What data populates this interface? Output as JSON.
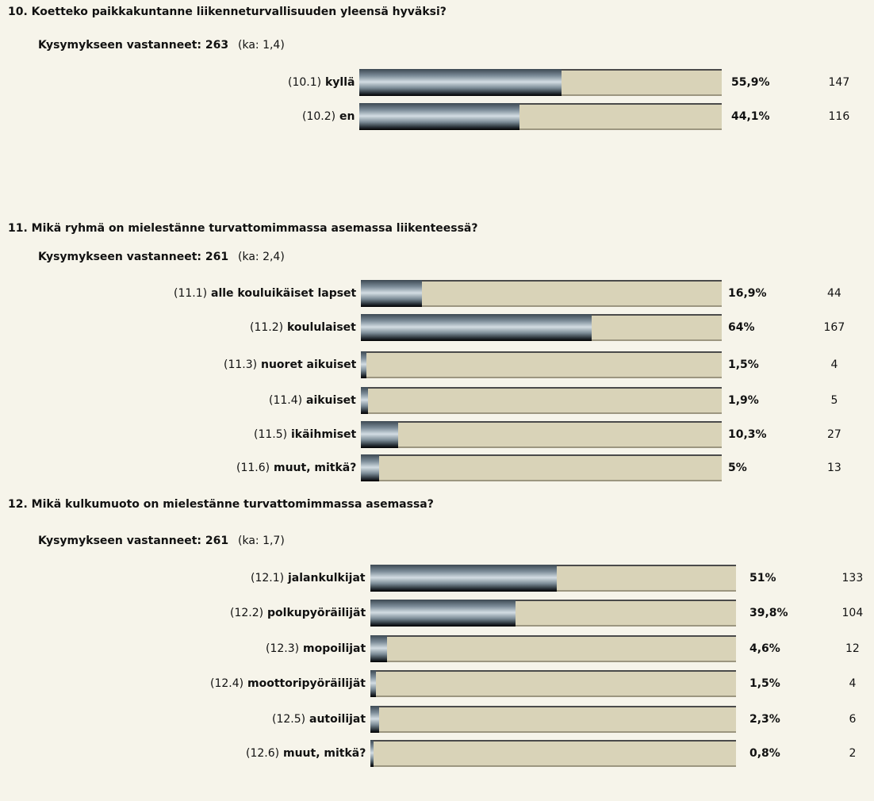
{
  "questions": [
    {
      "title": "10. Koetteko paikkakuntanne liikenneturvallisuuden yleensä hyväksi?",
      "respondents": "Kysymykseen vastanneet: 263",
      "mean": "(ka: 1,4)",
      "items": [
        {
          "code": "(10.1)",
          "label": "kyllä",
          "percent": 55.9,
          "percent_label": "55,9%",
          "count": 147
        },
        {
          "code": "(10.2)",
          "label": "en",
          "percent": 44.1,
          "percent_label": "44,1%",
          "count": 116
        }
      ]
    },
    {
      "title": "11. Mikä ryhmä on mielestänne turvattomimmassa asemassa liikenteessä?",
      "respondents": "Kysymykseen vastanneet: 261",
      "mean": "(ka: 2,4)",
      "items": [
        {
          "code": "(11.1)",
          "label": "alle kouluikäiset lapset",
          "percent": 16.9,
          "percent_label": "16,9%",
          "count": 44
        },
        {
          "code": "(11.2)",
          "label": "koululaiset",
          "percent": 64,
          "percent_label": "64%",
          "count": 167
        },
        {
          "code": "(11.3)",
          "label": "nuoret aikuiset",
          "percent": 1.5,
          "percent_label": "1,5%",
          "count": 4
        },
        {
          "code": "(11.4)",
          "label": "aikuiset",
          "percent": 1.9,
          "percent_label": "1,9%",
          "count": 5
        },
        {
          "code": "(11.5)",
          "label": "ikäihmiset",
          "percent": 10.3,
          "percent_label": "10,3%",
          "count": 27
        },
        {
          "code": "(11.6)",
          "label": "muut, mitkä?",
          "percent": 5,
          "percent_label": "5%",
          "count": 13
        }
      ]
    },
    {
      "title": "12. Mikä kulkumuoto on mielestänne turvattomimmassa asemassa?",
      "respondents": "Kysymykseen vastanneet: 261",
      "mean": "(ka: 1,7)",
      "items": [
        {
          "code": "(12.1)",
          "label": "jalankulkijat",
          "percent": 51,
          "percent_label": "51%",
          "count": 133
        },
        {
          "code": "(12.2)",
          "label": "polkupyöräilijät",
          "percent": 39.8,
          "percent_label": "39,8%",
          "count": 104
        },
        {
          "code": "(12.3)",
          "label": "mopoilijat",
          "percent": 4.6,
          "percent_label": "4,6%",
          "count": 12
        },
        {
          "code": "(12.4)",
          "label": "moottoripyöräilijät",
          "percent": 1.5,
          "percent_label": "1,5%",
          "count": 4
        },
        {
          "code": "(12.5)",
          "label": "autoilijat",
          "percent": 2.3,
          "percent_label": "2,3%",
          "count": 6
        },
        {
          "code": "(12.6)",
          "label": "muut, mitkä?",
          "percent": 0.8,
          "percent_label": "0,8%",
          "count": 2
        }
      ]
    }
  ]
}
